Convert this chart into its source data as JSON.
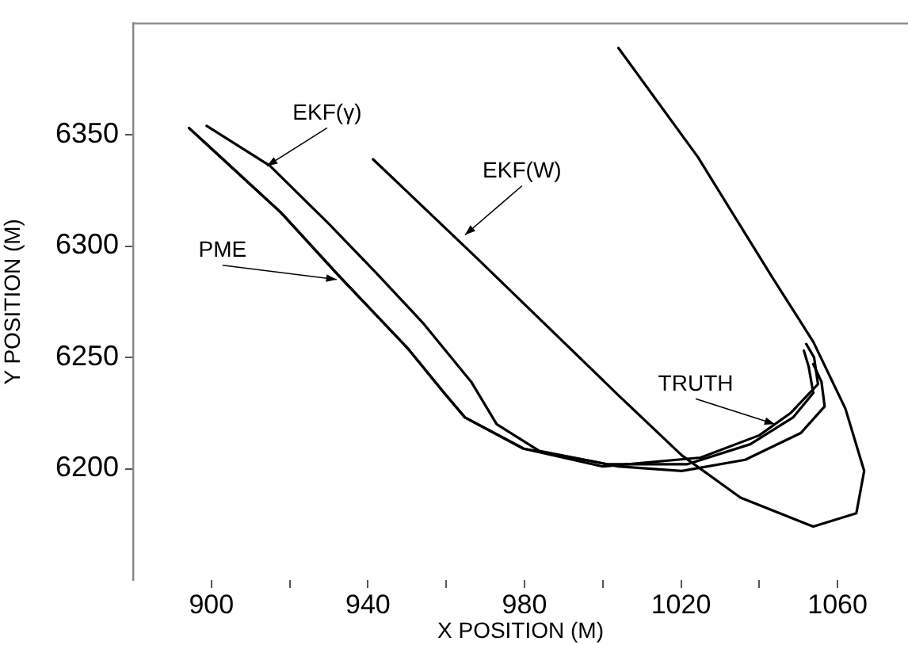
{
  "chart_data": {
    "type": "line",
    "xlabel": "X POSITION (M)",
    "ylabel": "Y POSITION (M)",
    "xlim": [
      880,
      1078
    ],
    "ylim": [
      6150,
      6400
    ],
    "xticks": [
      900,
      {
        "value": 920,
        "label": null
      },
      940,
      {
        "value": 960,
        "label": null
      },
      980,
      {
        "value": 1000,
        "label": null
      },
      1020,
      {
        "value": 1040,
        "label": null
      },
      1060
    ],
    "yticks": [
      6200,
      6250,
      6300,
      6350
    ],
    "grid": false,
    "legend": false,
    "marker": "none",
    "line_style": "solid",
    "tick_labels": "xy",
    "series": [
      {
        "color": "#000000",
        "x": [
          894.3,
          917.8,
          932.4,
          950.2,
          959.5,
          964.8,
          979.8,
          1001.2,
          1021.5,
          1037.7,
          1048.6,
          1053.8,
          1052.6,
          1051.4
        ],
        "values": [
          6353,
          6315,
          6287,
          6254,
          6234,
          6223,
          6209,
          6202,
          6202,
          6211,
          6223,
          6234,
          6246,
          6253
        ]
      },
      {
        "color": "#000000",
        "x": [
          894.3,
          917.8,
          932.4,
          950.2,
          959.5,
          964.8,
          979.8,
          1000,
          1025,
          1040,
          1048,
          1055,
          1054,
          1052
        ],
        "values": [
          6353,
          6315,
          6287,
          6254,
          6234,
          6223,
          6209,
          6201,
          6205,
          6215,
          6225,
          6238,
          6250,
          6256
        ]
      },
      {
        "color": "#000000",
        "x": [
          898.8,
          915.0,
          930.0,
          942.1,
          954.3,
          966.4,
          972.9,
          983.8,
          1004.0,
          1020.2,
          1036.4,
          1050.6,
          1056.7,
          1055.9,
          1053.8
        ],
        "values": [
          6354,
          6336,
          6310,
          6288,
          6265,
          6239,
          6220,
          6208,
          6201,
          6199,
          6204,
          6216,
          6228,
          6239,
          6247
        ]
      },
      {
        "color": "#000000",
        "x": [
          941.3,
          967.6,
          1004,
          1020.2,
          1035.2,
          1053.8,
          1064.8,
          1066.8,
          1062,
          1053.8,
          1043.3,
          1024.3,
          1004
        ],
        "values": [
          6339,
          6295,
          6233,
          6206,
          6187,
          6174,
          6180,
          6199,
          6227,
          6257,
          6286,
          6340,
          6389
        ]
      }
    ],
    "annotations": [
      {
        "text": "EKF(γ)",
        "x": 914.2,
        "y": 6336
      },
      {
        "text": "PME",
        "x": 932,
        "y": 6285
      },
      {
        "text": "EKF(W)",
        "x": 964.8,
        "y": 6305
      },
      {
        "text": "TRUTH",
        "x": 1044,
        "y": 6220
      }
    ]
  }
}
